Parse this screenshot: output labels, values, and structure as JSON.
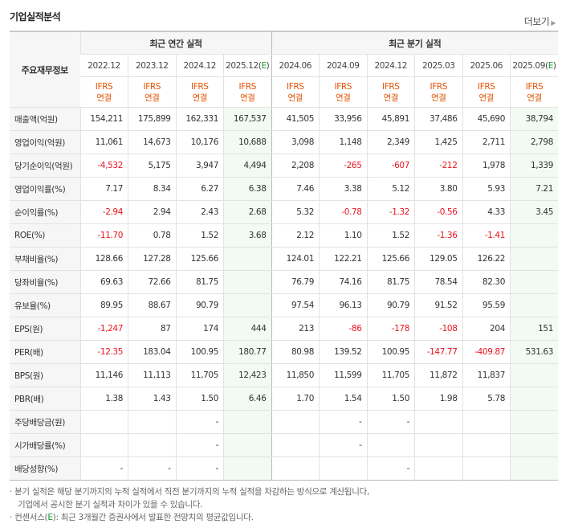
{
  "section_title": "기업실적분석",
  "more_label": "더보기",
  "header": {
    "row_label": "주요재무정보",
    "annual_group": "최근 연간 실적",
    "quarterly_group": "최근 분기 실적",
    "annual_periods": [
      "2022.12",
      "2023.12",
      "2024.12",
      "2025.12(E)"
    ],
    "quarterly_periods": [
      "2024.06",
      "2024.09",
      "2024.12",
      "2025.03",
      "2025.06",
      "2025.09(E)"
    ],
    "ifrs_label": "IFRS",
    "consolidated_label": "연결"
  },
  "rows": [
    {
      "label": "매출액(억원)",
      "values": [
        "154,211",
        "175,899",
        "162,331",
        "167,537",
        "41,505",
        "33,956",
        "45,891",
        "37,486",
        "45,690",
        "38,794"
      ]
    },
    {
      "label": "영업이익(억원)",
      "values": [
        "11,061",
        "14,673",
        "10,176",
        "10,688",
        "3,098",
        "1,148",
        "2,349",
        "1,425",
        "2,711",
        "2,798"
      ]
    },
    {
      "label": "당기순이익(억원)",
      "values": [
        "-4,532",
        "5,175",
        "3,947",
        "4,494",
        "2,208",
        "-265",
        "-607",
        "-212",
        "1,978",
        "1,339"
      ]
    },
    {
      "label": "영업이익률(%)",
      "values": [
        "7.17",
        "8.34",
        "6.27",
        "6.38",
        "7.46",
        "3.38",
        "5.12",
        "3.80",
        "5.93",
        "7.21"
      ]
    },
    {
      "label": "순이익률(%)",
      "values": [
        "-2.94",
        "2.94",
        "2.43",
        "2.68",
        "5.32",
        "-0.78",
        "-1.32",
        "-0.56",
        "4.33",
        "3.45"
      ]
    },
    {
      "label": "ROE(%)",
      "values": [
        "-11.70",
        "0.78",
        "1.52",
        "3.68",
        "2.12",
        "1.10",
        "1.52",
        "-1.36",
        "-1.41",
        ""
      ]
    },
    {
      "label": "부채비율(%)",
      "values": [
        "128.66",
        "127.28",
        "125.66",
        "",
        "124.01",
        "122.21",
        "125.66",
        "129.05",
        "126.22",
        ""
      ]
    },
    {
      "label": "당좌비율(%)",
      "values": [
        "69.63",
        "72.66",
        "81.75",
        "",
        "76.79",
        "74.16",
        "81.75",
        "78.54",
        "82.30",
        ""
      ]
    },
    {
      "label": "유보율(%)",
      "values": [
        "89.95",
        "88.67",
        "90.79",
        "",
        "97.54",
        "96.13",
        "90.79",
        "91.52",
        "95.59",
        ""
      ]
    },
    {
      "label": "EPS(원)",
      "values": [
        "-1,247",
        "87",
        "174",
        "444",
        "213",
        "-86",
        "-178",
        "-108",
        "204",
        "151"
      ]
    },
    {
      "label": "PER(배)",
      "values": [
        "-12.35",
        "183.04",
        "100.95",
        "180.77",
        "80.98",
        "139.52",
        "100.95",
        "-147.77",
        "-409.87",
        "531.63"
      ]
    },
    {
      "label": "BPS(원)",
      "values": [
        "11,146",
        "11,113",
        "11,705",
        "12,423",
        "11,850",
        "11,599",
        "11,705",
        "11,872",
        "11,837",
        ""
      ]
    },
    {
      "label": "PBR(배)",
      "values": [
        "1.38",
        "1.43",
        "1.50",
        "6.46",
        "1.70",
        "1.54",
        "1.50",
        "1.98",
        "5.78",
        ""
      ]
    },
    {
      "label": "주당배당금(원)",
      "values": [
        "",
        "",
        "-",
        "",
        "",
        "-",
        "-",
        "",
        "",
        ""
      ]
    },
    {
      "label": "시가배당률(%)",
      "values": [
        "",
        "",
        "-",
        "",
        "",
        "-",
        "",
        "",
        "",
        ""
      ]
    },
    {
      "label": "배당성향(%)",
      "values": [
        "-",
        "-",
        "-",
        "",
        "",
        "",
        "-",
        "",
        "",
        ""
      ]
    }
  ],
  "colors": {
    "negative": "#e8151f",
    "ifrs": "#e35205",
    "estimate_bg": "#f1faf3",
    "estimate_mark": "#159a2e"
  },
  "notes": {
    "line1": "· 분기 실적은 해당 분기까지의 누적 실적에서 직전 분기까지의 누적 실적을 차감하는 방식으로 계산됩니다,",
    "line2": "기업에서 공시한 분기 실적과 차이가 있을 수 있습니다.",
    "line3_prefix": "· 컨센서스(",
    "line3_mark": "E",
    "line3_suffix": "): 최근 3개월간 증권사에서 발표한 전망치의 평균값입니다."
  }
}
